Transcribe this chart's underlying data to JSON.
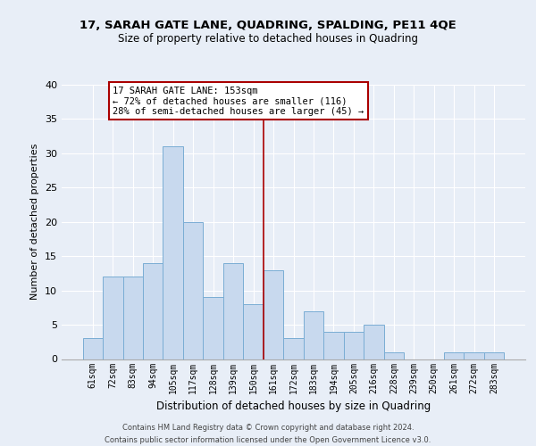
{
  "title1": "17, SARAH GATE LANE, QUADRING, SPALDING, PE11 4QE",
  "title2": "Size of property relative to detached houses in Quadring",
  "xlabel": "Distribution of detached houses by size in Quadring",
  "ylabel": "Number of detached properties",
  "bin_labels": [
    "61sqm",
    "72sqm",
    "83sqm",
    "94sqm",
    "105sqm",
    "117sqm",
    "128sqm",
    "139sqm",
    "150sqm",
    "161sqm",
    "172sqm",
    "183sqm",
    "194sqm",
    "205sqm",
    "216sqm",
    "228sqm",
    "239sqm",
    "250sqm",
    "261sqm",
    "272sqm",
    "283sqm"
  ],
  "bar_heights": [
    3,
    12,
    12,
    14,
    31,
    20,
    9,
    14,
    8,
    13,
    3,
    7,
    4,
    4,
    5,
    1,
    0,
    0,
    1,
    1,
    1
  ],
  "bar_color": "#c8d9ee",
  "bar_edge_color": "#7aadd4",
  "vline_x_index": 8.5,
  "vline_color": "#aa0000",
  "annotation_line1": "17 SARAH GATE LANE: 153sqm",
  "annotation_line2": "← 72% of detached houses are smaller (116)",
  "annotation_line3": "28% of semi-detached houses are larger (45) →",
  "annotation_box_color": "#ffffff",
  "annotation_box_edge": "#aa0000",
  "ylim": [
    0,
    40
  ],
  "yticks": [
    0,
    5,
    10,
    15,
    20,
    25,
    30,
    35,
    40
  ],
  "footer_text": "Contains HM Land Registry data © Crown copyright and database right 2024.\nContains public sector information licensed under the Open Government Licence v3.0.",
  "bg_color": "#e8eef7",
  "plot_bg_color": "#e8eef7",
  "grid_color": "#ffffff",
  "title1_fontsize": 9.5,
  "title2_fontsize": 8.5
}
